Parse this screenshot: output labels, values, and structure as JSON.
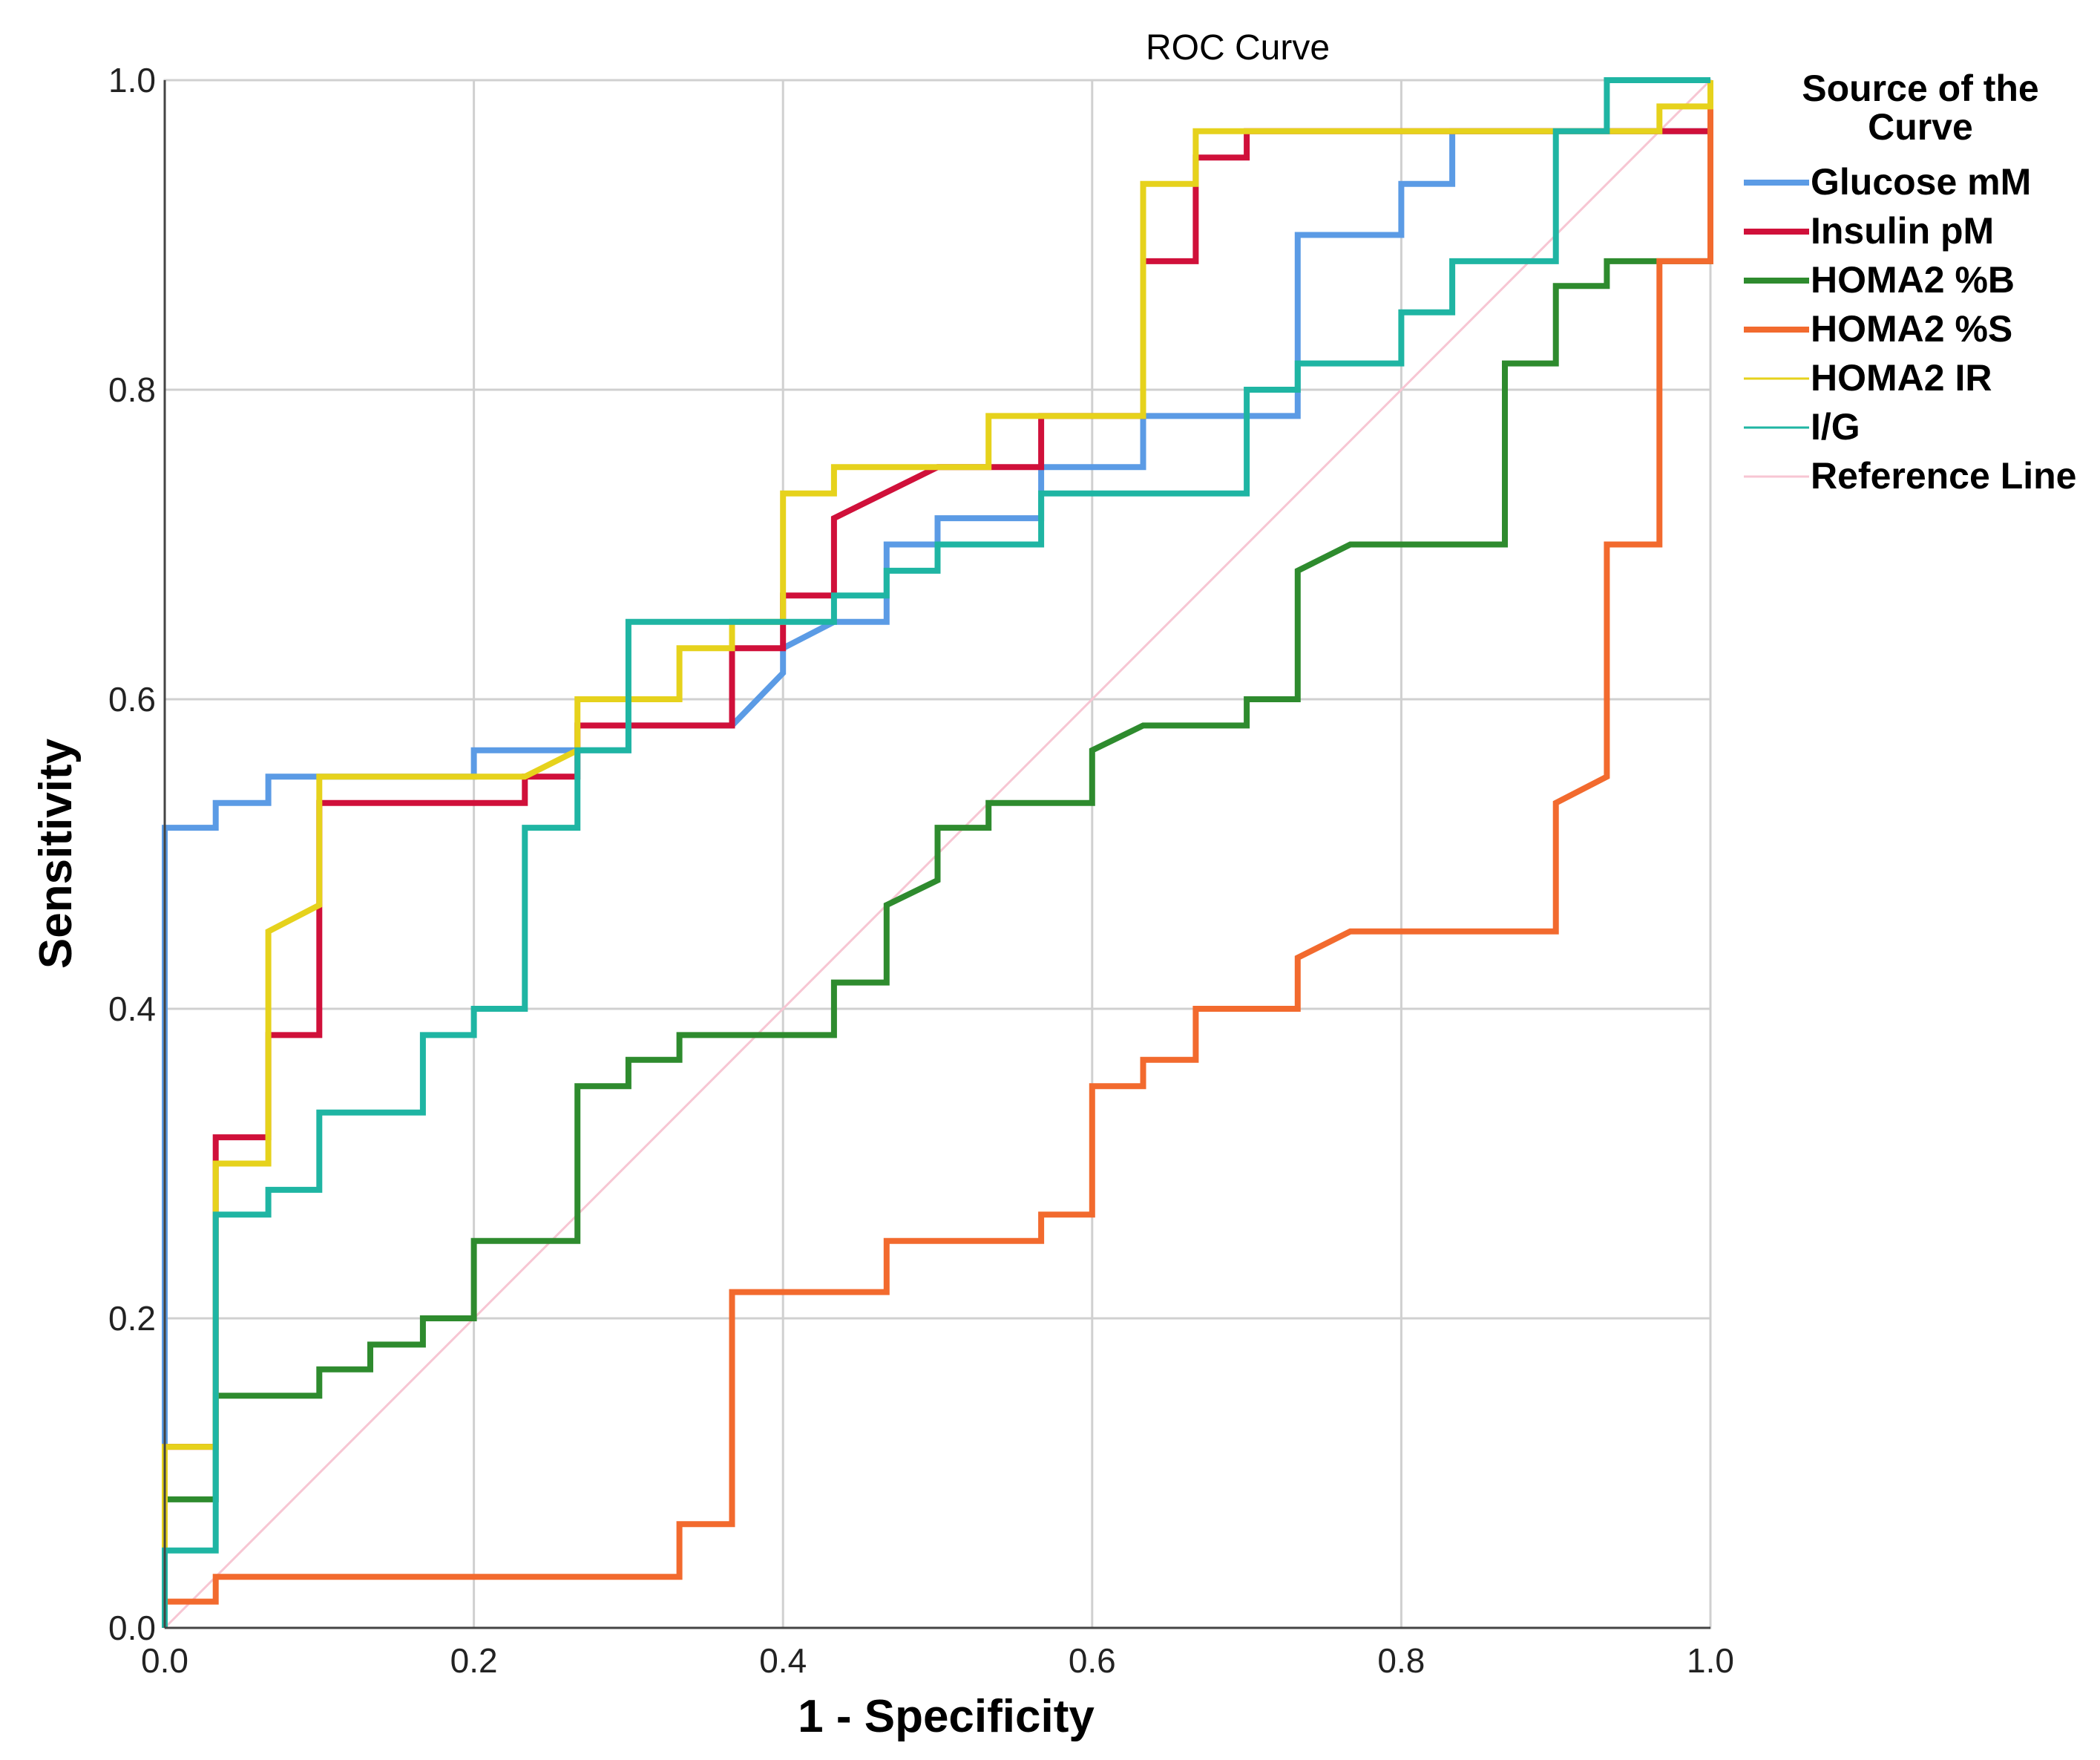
{
  "chart_data": {
    "type": "line",
    "title": "ROC Curve",
    "xlabel": "1 - Specificity",
    "ylabel": "Sensitivity",
    "xlim": [
      0,
      1
    ],
    "ylim": [
      0,
      1
    ],
    "xticks": [
      "0.0",
      "0.2",
      "0.4",
      "0.6",
      "0.8",
      "1.0"
    ],
    "yticks": [
      "0.0",
      "0.2",
      "0.4",
      "0.6",
      "0.8",
      "1.0"
    ],
    "grid": true,
    "legend": {
      "title": "Source of the Curve",
      "title_lines": [
        "Source of the",
        "Curve"
      ],
      "position": "right"
    },
    "series": [
      {
        "name": "Glucose mM",
        "color": "#5b9be5",
        "width": "thick",
        "points": [
          [
            0,
            0
          ],
          [
            0,
            0.517
          ],
          [
            0.033,
            0.517
          ],
          [
            0.033,
            0.533
          ],
          [
            0.067,
            0.533
          ],
          [
            0.067,
            0.55
          ],
          [
            0.2,
            0.55
          ],
          [
            0.2,
            0.567
          ],
          [
            0.3,
            0.567
          ],
          [
            0.3,
            0.583
          ],
          [
            0.367,
            0.583
          ],
          [
            0.4,
            0.617
          ],
          [
            0.4,
            0.633
          ],
          [
            0.433,
            0.65
          ],
          [
            0.467,
            0.65
          ],
          [
            0.467,
            0.7
          ],
          [
            0.5,
            0.7
          ],
          [
            0.5,
            0.717
          ],
          [
            0.567,
            0.717
          ],
          [
            0.567,
            0.75
          ],
          [
            0.633,
            0.75
          ],
          [
            0.633,
            0.783
          ],
          [
            0.733,
            0.783
          ],
          [
            0.733,
            0.9
          ],
          [
            0.8,
            0.9
          ],
          [
            0.8,
            0.933
          ],
          [
            0.833,
            0.933
          ],
          [
            0.833,
            0.967
          ],
          [
            1,
            0.967
          ],
          [
            1,
            1
          ]
        ]
      },
      {
        "name": "Insulin pM",
        "color": "#d0103a",
        "width": "thick",
        "points": [
          [
            0,
            0
          ],
          [
            0,
            0.117
          ],
          [
            0.033,
            0.117
          ],
          [
            0.033,
            0.317
          ],
          [
            0.067,
            0.317
          ],
          [
            0.067,
            0.383
          ],
          [
            0.1,
            0.383
          ],
          [
            0.1,
            0.533
          ],
          [
            0.233,
            0.533
          ],
          [
            0.233,
            0.55
          ],
          [
            0.267,
            0.55
          ],
          [
            0.267,
            0.583
          ],
          [
            0.367,
            0.583
          ],
          [
            0.367,
            0.633
          ],
          [
            0.4,
            0.633
          ],
          [
            0.4,
            0.667
          ],
          [
            0.433,
            0.667
          ],
          [
            0.433,
            0.717
          ],
          [
            0.5,
            0.75
          ],
          [
            0.567,
            0.75
          ],
          [
            0.567,
            0.783
          ],
          [
            0.633,
            0.783
          ],
          [
            0.633,
            0.883
          ],
          [
            0.667,
            0.883
          ],
          [
            0.667,
            0.95
          ],
          [
            0.7,
            0.95
          ],
          [
            0.7,
            0.967
          ],
          [
            1,
            0.967
          ],
          [
            1,
            1
          ]
        ]
      },
      {
        "name": "HOMA2 %B",
        "color": "#2e8b2e",
        "width": "thick",
        "points": [
          [
            0,
            0
          ],
          [
            0,
            0.083
          ],
          [
            0.033,
            0.083
          ],
          [
            0.033,
            0.15
          ],
          [
            0.1,
            0.15
          ],
          [
            0.1,
            0.167
          ],
          [
            0.133,
            0.167
          ],
          [
            0.133,
            0.183
          ],
          [
            0.167,
            0.183
          ],
          [
            0.167,
            0.2
          ],
          [
            0.2,
            0.2
          ],
          [
            0.2,
            0.25
          ],
          [
            0.267,
            0.25
          ],
          [
            0.267,
            0.35
          ],
          [
            0.3,
            0.35
          ],
          [
            0.3,
            0.367
          ],
          [
            0.333,
            0.367
          ],
          [
            0.333,
            0.383
          ],
          [
            0.433,
            0.383
          ],
          [
            0.433,
            0.417
          ],
          [
            0.467,
            0.417
          ],
          [
            0.467,
            0.467
          ],
          [
            0.5,
            0.483
          ],
          [
            0.5,
            0.517
          ],
          [
            0.533,
            0.517
          ],
          [
            0.533,
            0.533
          ],
          [
            0.6,
            0.533
          ],
          [
            0.6,
            0.567
          ],
          [
            0.633,
            0.583
          ],
          [
            0.7,
            0.583
          ],
          [
            0.7,
            0.6
          ],
          [
            0.733,
            0.6
          ],
          [
            0.733,
            0.683
          ],
          [
            0.767,
            0.7
          ],
          [
            0.867,
            0.7
          ],
          [
            0.867,
            0.817
          ],
          [
            0.9,
            0.817
          ],
          [
            0.9,
            0.867
          ],
          [
            0.933,
            0.867
          ],
          [
            0.933,
            0.883
          ],
          [
            1,
            0.883
          ],
          [
            1,
            1
          ]
        ]
      },
      {
        "name": "HOMA2 %S",
        "color": "#f26a2e",
        "width": "thick",
        "points": [
          [
            0,
            0
          ],
          [
            0,
            0.017
          ],
          [
            0.033,
            0.017
          ],
          [
            0.033,
            0.033
          ],
          [
            0.333,
            0.033
          ],
          [
            0.333,
            0.067
          ],
          [
            0.367,
            0.067
          ],
          [
            0.367,
            0.217
          ],
          [
            0.467,
            0.217
          ],
          [
            0.467,
            0.25
          ],
          [
            0.567,
            0.25
          ],
          [
            0.567,
            0.267
          ],
          [
            0.6,
            0.267
          ],
          [
            0.6,
            0.35
          ],
          [
            0.633,
            0.35
          ],
          [
            0.633,
            0.367
          ],
          [
            0.667,
            0.367
          ],
          [
            0.667,
            0.4
          ],
          [
            0.733,
            0.4
          ],
          [
            0.733,
            0.433
          ],
          [
            0.767,
            0.45
          ],
          [
            0.9,
            0.45
          ],
          [
            0.9,
            0.533
          ],
          [
            0.933,
            0.55
          ],
          [
            0.933,
            0.7
          ],
          [
            0.967,
            0.7
          ],
          [
            0.967,
            0.883
          ],
          [
            1,
            0.883
          ],
          [
            1,
            1
          ]
        ]
      },
      {
        "name": "HOMA2 IR",
        "color": "#e6d21c",
        "width": "thick",
        "legend_width": "thin",
        "points": [
          [
            0,
            0
          ],
          [
            0,
            0.117
          ],
          [
            0.033,
            0.117
          ],
          [
            0.033,
            0.3
          ],
          [
            0.067,
            0.3
          ],
          [
            0.067,
            0.45
          ],
          [
            0.1,
            0.467
          ],
          [
            0.1,
            0.55
          ],
          [
            0.233,
            0.55
          ],
          [
            0.233,
            0.55
          ],
          [
            0.267,
            0.567
          ],
          [
            0.267,
            0.6
          ],
          [
            0.333,
            0.6
          ],
          [
            0.333,
            0.633
          ],
          [
            0.367,
            0.633
          ],
          [
            0.367,
            0.65
          ],
          [
            0.4,
            0.65
          ],
          [
            0.4,
            0.733
          ],
          [
            0.433,
            0.733
          ],
          [
            0.433,
            0.75
          ],
          [
            0.533,
            0.75
          ],
          [
            0.533,
            0.783
          ],
          [
            0.567,
            0.783
          ],
          [
            0.633,
            0.783
          ],
          [
            0.633,
            0.933
          ],
          [
            0.667,
            0.933
          ],
          [
            0.667,
            0.967
          ],
          [
            0.967,
            0.967
          ],
          [
            0.967,
            0.983
          ],
          [
            1,
            0.983
          ],
          [
            1,
            1
          ]
        ]
      },
      {
        "name": "I/G",
        "color": "#1fb5a3",
        "width": "thick",
        "legend_width": "thin",
        "points": [
          [
            0,
            0
          ],
          [
            0,
            0.05
          ],
          [
            0.033,
            0.05
          ],
          [
            0.033,
            0.267
          ],
          [
            0.067,
            0.267
          ],
          [
            0.067,
            0.283
          ],
          [
            0.1,
            0.283
          ],
          [
            0.1,
            0.333
          ],
          [
            0.167,
            0.333
          ],
          [
            0.167,
            0.383
          ],
          [
            0.2,
            0.383
          ],
          [
            0.2,
            0.4
          ],
          [
            0.233,
            0.4
          ],
          [
            0.233,
            0.517
          ],
          [
            0.267,
            0.517
          ],
          [
            0.267,
            0.567
          ],
          [
            0.3,
            0.567
          ],
          [
            0.3,
            0.65
          ],
          [
            0.433,
            0.65
          ],
          [
            0.433,
            0.667
          ],
          [
            0.467,
            0.667
          ],
          [
            0.467,
            0.683
          ],
          [
            0.5,
            0.683
          ],
          [
            0.5,
            0.7
          ],
          [
            0.567,
            0.7
          ],
          [
            0.567,
            0.733
          ],
          [
            0.7,
            0.733
          ],
          [
            0.7,
            0.8
          ],
          [
            0.733,
            0.8
          ],
          [
            0.733,
            0.817
          ],
          [
            0.8,
            0.817
          ],
          [
            0.8,
            0.85
          ],
          [
            0.833,
            0.85
          ],
          [
            0.833,
            0.883
          ],
          [
            0.9,
            0.883
          ],
          [
            0.9,
            0.967
          ],
          [
            0.933,
            0.967
          ],
          [
            0.933,
            1
          ],
          [
            1,
            1
          ]
        ]
      },
      {
        "name": "Reference Line",
        "color": "#f7c6d3",
        "width": "thin",
        "points": [
          [
            0,
            0
          ],
          [
            1,
            1
          ]
        ]
      }
    ]
  }
}
